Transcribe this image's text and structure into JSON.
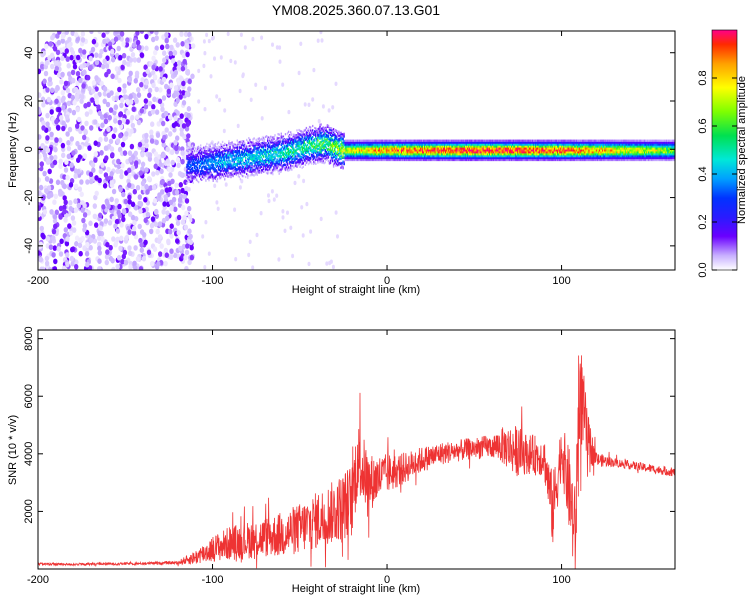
{
  "title": "YM08.2025.360.07.13.G01",
  "chart_data": [
    {
      "type": "heatmap",
      "xlabel": "Height of straight line (km)",
      "ylabel": "Frequency (Hz)",
      "xlim": [
        -200,
        165
      ],
      "ylim": [
        -50,
        49
      ],
      "xticks": [
        -200,
        -100,
        0,
        100
      ],
      "yticks": [
        -40,
        -20,
        0,
        20,
        40
      ],
      "colorbar": {
        "label": "Normalized spectral amplitude",
        "range": [
          0,
          1
        ],
        "ticks": [
          0.0,
          0.2,
          0.4,
          0.6,
          0.8
        ],
        "colors": [
          "#ffffff",
          "#c8b0ff",
          "#6a00ff",
          "#2a1bff",
          "#0033ff",
          "#00a0ff",
          "#00e8d8",
          "#00e050",
          "#7fff00",
          "#ffff00",
          "#ffa000",
          "#ff2a00",
          "#ff0088"
        ]
      },
      "ridge": [
        {
          "x": -115,
          "freq": -6,
          "amp": 0.35
        },
        {
          "x": -100,
          "freq": -5,
          "amp": 0.45
        },
        {
          "x": -80,
          "freq": -3,
          "amp": 0.5
        },
        {
          "x": -60,
          "freq": -1,
          "amp": 0.55
        },
        {
          "x": -45,
          "freq": 2,
          "amp": 0.6
        },
        {
          "x": -35,
          "freq": 3,
          "amp": 0.65
        },
        {
          "x": -25,
          "freq": 0,
          "amp": 0.75
        },
        {
          "x": 0,
          "freq": 0,
          "amp": 0.9
        },
        {
          "x": 50,
          "freq": 0,
          "amp": 1.0
        },
        {
          "x": 100,
          "freq": 0,
          "amp": 0.95
        },
        {
          "x": 165,
          "freq": 0,
          "amp": 0.7
        }
      ],
      "noise_region_x": [
        -200,
        -115
      ]
    },
    {
      "type": "line",
      "xlabel": "Height of straight line (km)",
      "ylabel": "SNR (10 * v/v)",
      "xlim": [
        -200,
        165
      ],
      "ylim": [
        0,
        8300
      ],
      "xticks": [
        -200,
        -100,
        0,
        100
      ],
      "yticks": [
        2000,
        4000,
        6000,
        8000
      ],
      "color": "#ee3333",
      "series": [
        {
          "name": "SNR",
          "x": [
            -200,
            -180,
            -160,
            -140,
            -120,
            -110,
            -100,
            -90,
            -80,
            -70,
            -60,
            -50,
            -40,
            -30,
            -20,
            -17,
            -10,
            0,
            10,
            20,
            30,
            40,
            50,
            60,
            65,
            70,
            75,
            80,
            90,
            95,
            100,
            105,
            108,
            110,
            115,
            120,
            130,
            140,
            150,
            165
          ],
          "y": [
            180,
            160,
            180,
            190,
            220,
            400,
            700,
            900,
            1000,
            1100,
            1200,
            1400,
            1700,
            2000,
            2400,
            3800,
            3000,
            3300,
            3500,
            3800,
            4000,
            4100,
            4200,
            4250,
            4300,
            4200,
            4100,
            4000,
            3900,
            2000,
            4200,
            2500,
            1000,
            6500,
            4500,
            3800,
            3700,
            3600,
            3500,
            3350
          ],
          "spread": [
            40,
            40,
            40,
            40,
            60,
            250,
            450,
            600,
            650,
            700,
            800,
            900,
            1000,
            1100,
            1300,
            1400,
            1000,
            700,
            550,
            450,
            400,
            380,
            380,
            400,
            600,
            800,
            900,
            700,
            700,
            1300,
            900,
            1600,
            1800,
            2000,
            900,
            250,
            150,
            150,
            150,
            150
          ]
        }
      ]
    }
  ]
}
